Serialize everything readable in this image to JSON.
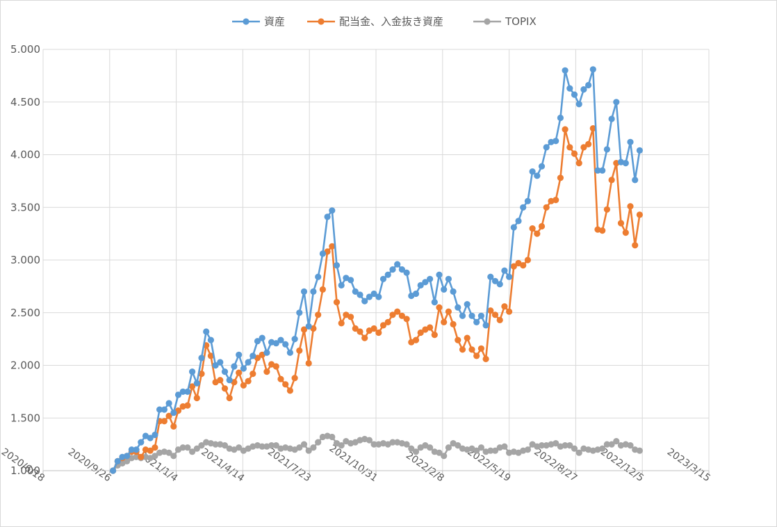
{
  "chart_data": {
    "type": "line",
    "title": "",
    "xlabel": "",
    "ylabel": "",
    "x_axis": {
      "type": "date",
      "min": "2020-06-18",
      "max": "2023-03-15",
      "tick_labels": [
        "2020/6/18",
        "2020/9/26",
        "2021/1/4",
        "2021/4/14",
        "2021/7/23",
        "2021/10/31",
        "2022/2/8",
        "2022/5/19",
        "2022/8/27",
        "2022/12/5",
        "2023/3/15"
      ]
    },
    "y_axis": {
      "min": 1.0,
      "max": 5.0,
      "tick_labels": [
        "1.000",
        "1.500",
        "2.000",
        "2.500",
        "3.000",
        "3.500",
        "4.000",
        "4.500",
        "5.000"
      ]
    },
    "grid": true,
    "legend_position": "top",
    "start_date": "2020-10-01",
    "interval_days": 7,
    "series": [
      {
        "name": "資産",
        "color": "#5b9bd5",
        "values": [
          1.0,
          1.09,
          1.13,
          1.14,
          1.2,
          1.2,
          1.27,
          1.33,
          1.31,
          1.34,
          1.58,
          1.58,
          1.64,
          1.55,
          1.72,
          1.75,
          1.75,
          1.94,
          1.83,
          2.07,
          2.32,
          2.24,
          2.0,
          2.03,
          1.94,
          1.86,
          1.99,
          2.1,
          1.97,
          2.03,
          2.09,
          2.23,
          2.26,
          2.12,
          2.22,
          2.21,
          2.24,
          2.2,
          2.12,
          2.25,
          2.5,
          2.7,
          2.37,
          2.7,
          2.84,
          3.06,
          3.41,
          3.47,
          2.95,
          2.76,
          2.83,
          2.81,
          2.7,
          2.67,
          2.61,
          2.65,
          2.68,
          2.65,
          2.82,
          2.86,
          2.91,
          2.96,
          2.91,
          2.88,
          2.66,
          2.68,
          2.76,
          2.79,
          2.82,
          2.6,
          2.86,
          2.72,
          2.82,
          2.7,
          2.55,
          2.47,
          2.58,
          2.47,
          2.41,
          2.47,
          2.38,
          2.84,
          2.8,
          2.77,
          2.9,
          2.84,
          3.31,
          3.37,
          3.5,
          3.56,
          3.84,
          3.8,
          3.89,
          4.07,
          4.12,
          4.13,
          4.35,
          4.8,
          4.63,
          4.57,
          4.48,
          4.62,
          4.66,
          4.81,
          3.85,
          3.85,
          4.05,
          4.34,
          4.5,
          3.93,
          3.92,
          4.12,
          3.76,
          4.04
        ]
      },
      {
        "name": "配当金、入金抜き資産",
        "color": "#ed7d31",
        "values": [
          1.0,
          1.09,
          1.12,
          1.14,
          1.18,
          1.18,
          1.13,
          1.2,
          1.19,
          1.22,
          1.47,
          1.47,
          1.52,
          1.42,
          1.57,
          1.61,
          1.62,
          1.8,
          1.69,
          1.92,
          2.19,
          2.09,
          1.84,
          1.86,
          1.78,
          1.69,
          1.84,
          1.93,
          1.81,
          1.85,
          1.92,
          2.07,
          2.1,
          1.94,
          2.01,
          1.99,
          1.87,
          1.82,
          1.76,
          1.88,
          2.14,
          2.34,
          2.02,
          2.35,
          2.48,
          2.72,
          3.08,
          3.13,
          2.6,
          2.4,
          2.48,
          2.46,
          2.35,
          2.32,
          2.26,
          2.33,
          2.35,
          2.31,
          2.38,
          2.41,
          2.48,
          2.51,
          2.47,
          2.44,
          2.22,
          2.24,
          2.31,
          2.34,
          2.36,
          2.29,
          2.55,
          2.41,
          2.51,
          2.39,
          2.24,
          2.15,
          2.26,
          2.15,
          2.09,
          2.16,
          2.06,
          2.52,
          2.48,
          2.43,
          2.56,
          2.51,
          2.94,
          2.97,
          2.95,
          3.0,
          3.3,
          3.25,
          3.32,
          3.5,
          3.56,
          3.57,
          3.78,
          4.24,
          4.07,
          4.01,
          3.92,
          4.07,
          4.1,
          4.25,
          3.29,
          3.28,
          3.48,
          3.76,
          3.92,
          3.35,
          3.26,
          3.51,
          3.14,
          3.43
        ]
      },
      {
        "name": "TOPIX",
        "color": "#a5a5a5",
        "values": [
          1.0,
          1.05,
          1.07,
          1.09,
          1.12,
          1.13,
          1.12,
          1.13,
          1.12,
          1.14,
          1.17,
          1.18,
          1.17,
          1.14,
          1.2,
          1.22,
          1.22,
          1.18,
          1.21,
          1.24,
          1.27,
          1.26,
          1.25,
          1.25,
          1.24,
          1.21,
          1.2,
          1.22,
          1.19,
          1.21,
          1.23,
          1.24,
          1.23,
          1.23,
          1.24,
          1.24,
          1.21,
          1.22,
          1.21,
          1.2,
          1.22,
          1.25,
          1.19,
          1.22,
          1.27,
          1.32,
          1.33,
          1.32,
          1.26,
          1.24,
          1.28,
          1.26,
          1.27,
          1.29,
          1.3,
          1.29,
          1.25,
          1.25,
          1.26,
          1.25,
          1.27,
          1.27,
          1.26,
          1.25,
          1.21,
          1.18,
          1.22,
          1.24,
          1.22,
          1.18,
          1.17,
          1.14,
          1.22,
          1.26,
          1.24,
          1.21,
          1.2,
          1.21,
          1.19,
          1.22,
          1.18,
          1.19,
          1.19,
          1.22,
          1.23,
          1.17,
          1.18,
          1.17,
          1.19,
          1.2,
          1.25,
          1.23,
          1.24,
          1.24,
          1.25,
          1.26,
          1.23,
          1.24,
          1.24,
          1.21,
          1.17,
          1.21,
          1.2,
          1.19,
          1.2,
          1.21,
          1.25,
          1.25,
          1.28,
          1.24,
          1.25,
          1.24,
          1.2,
          1.19
        ]
      }
    ]
  }
}
